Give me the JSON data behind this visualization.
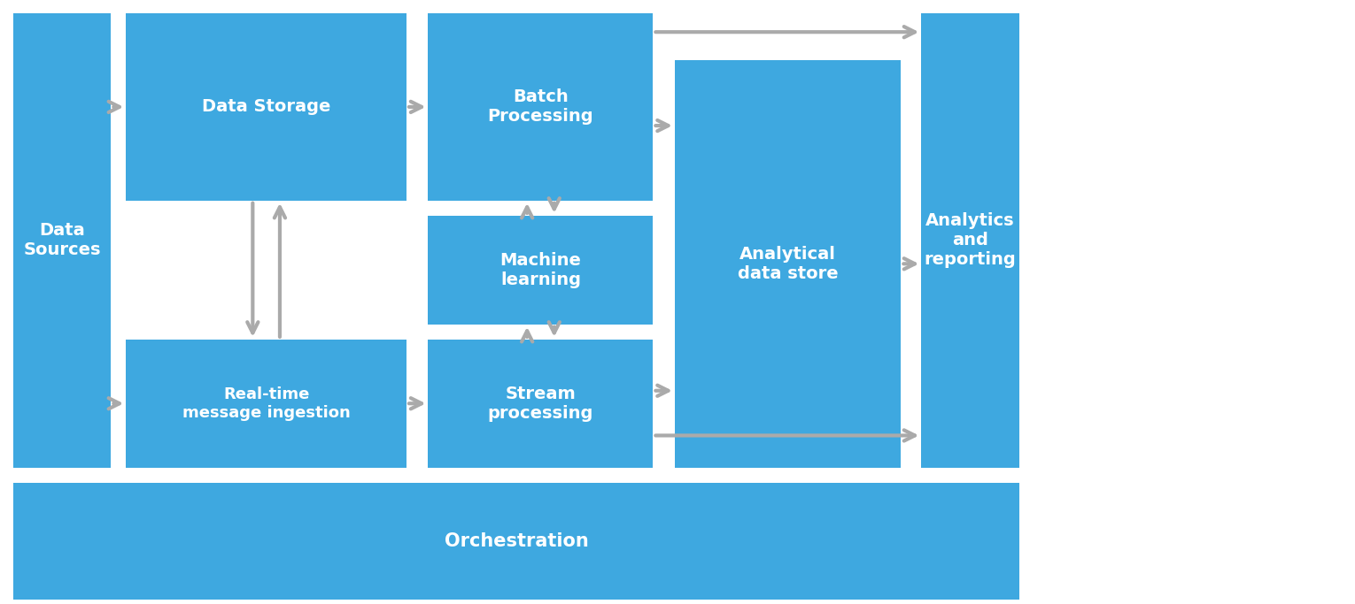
{
  "blue": "#3EA8E0",
  "white": "#FFFFFF",
  "arrow_color": "#AAAAAA",
  "title": "Orchestration",
  "boxes": {
    "data_sources": {
      "label": "Data\nSources"
    },
    "data_storage": {
      "label": "Data Storage"
    },
    "batch_processing": {
      "label": "Batch\nProcessing"
    },
    "machine_learning": {
      "label": "Machine\nlearning"
    },
    "real_time": {
      "label": "Real-time\nmessage ingestion"
    },
    "stream_processing": {
      "label": "Stream\nprocessing"
    },
    "analytical": {
      "label": "Analytical\ndata store"
    },
    "analytics_reporting": {
      "label": "Analytics\nand\nreporting"
    },
    "orchestration": {
      "label": "Orchestration"
    }
  },
  "font_size": 14,
  "font_size_small": 13
}
